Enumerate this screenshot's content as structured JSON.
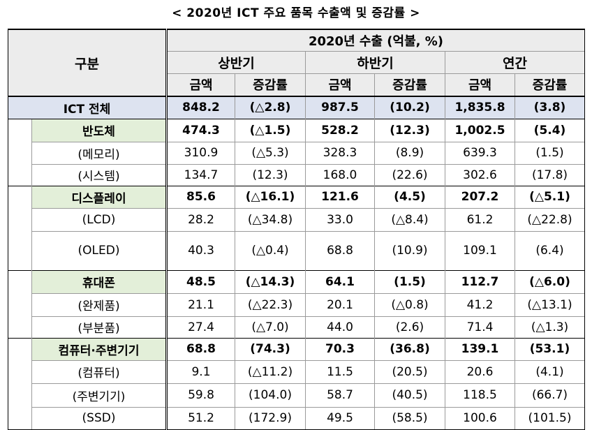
{
  "title": "< 2020년 ICT 주요 품목 수출액 및 증감률 >",
  "header": {
    "category": "구분",
    "top": "2020년 수출 (억불, %)",
    "periods": [
      "상반기",
      "하반기",
      "연간"
    ],
    "amount": "금액",
    "change": "증감률"
  },
  "total": {
    "label": "ICT 전체",
    "values": [
      "848.2",
      "(△2.8)",
      "987.5",
      "(10.2)",
      "1,835.8",
      "(3.8)"
    ]
  },
  "groups": [
    {
      "label": "반도체",
      "values": [
        "474.3",
        "(△1.5)",
        "528.2",
        "(12.3)",
        "1,002.5",
        "(5.4)"
      ],
      "items": [
        {
          "label": "(메모리)",
          "values": [
            "310.9",
            "(△5.3)",
            "328.3",
            "(8.9)",
            "639.3",
            "(1.5)"
          ]
        },
        {
          "label": "(시스템)",
          "values": [
            "134.7",
            "(12.3)",
            "168.0",
            "(22.6)",
            "302.6",
            "(17.8)"
          ]
        }
      ]
    },
    {
      "label": "디스플레이",
      "values": [
        "85.6",
        "(△16.1)",
        "121.6",
        "(4.5)",
        "207.2",
        "(△5.1)"
      ],
      "items": [
        {
          "label": "(LCD)",
          "values": [
            "28.2",
            "(△34.8)",
            "33.0",
            "(△8.4)",
            "61.2",
            "(△22.8)"
          ]
        },
        {
          "label": "(OLED)",
          "values": [
            "40.3",
            "(△0.4)",
            "68.8",
            "(10.9)",
            "109.1",
            "(6.4)"
          ]
        }
      ]
    },
    {
      "label": "휴대폰",
      "values": [
        "48.5",
        "(△14.3)",
        "64.1",
        "(1.5)",
        "112.7",
        "(△6.0)"
      ],
      "items": [
        {
          "label": "(완제품)",
          "values": [
            "21.1",
            "(△22.3)",
            "20.1",
            "(△0.8)",
            "41.2",
            "(△13.1)"
          ]
        },
        {
          "label": "(부분품)",
          "values": [
            "27.4",
            "(△7.0)",
            "44.0",
            "(2.6)",
            "71.4",
            "(△1.3)"
          ]
        }
      ]
    },
    {
      "label": "컴퓨터·주변기기",
      "values": [
        "68.8",
        "(74.3)",
        "70.3",
        "(36.8)",
        "139.1",
        "(53.1)"
      ],
      "items": [
        {
          "label": "(컴퓨터)",
          "values": [
            "9.1",
            "(△11.2)",
            "11.5",
            "(20.5)",
            "20.6",
            "(4.1)"
          ]
        },
        {
          "label": "(주변기기)",
          "values": [
            "59.8",
            "(104.0)",
            "58.7",
            "(40.5)",
            "118.5",
            "(66.7)"
          ]
        },
        {
          "label": "(SSD)",
          "values": [
            "51.2",
            "(172.9)",
            "49.5",
            "(58.5)",
            "100.6",
            "(101.5)"
          ]
        }
      ]
    }
  ]
}
